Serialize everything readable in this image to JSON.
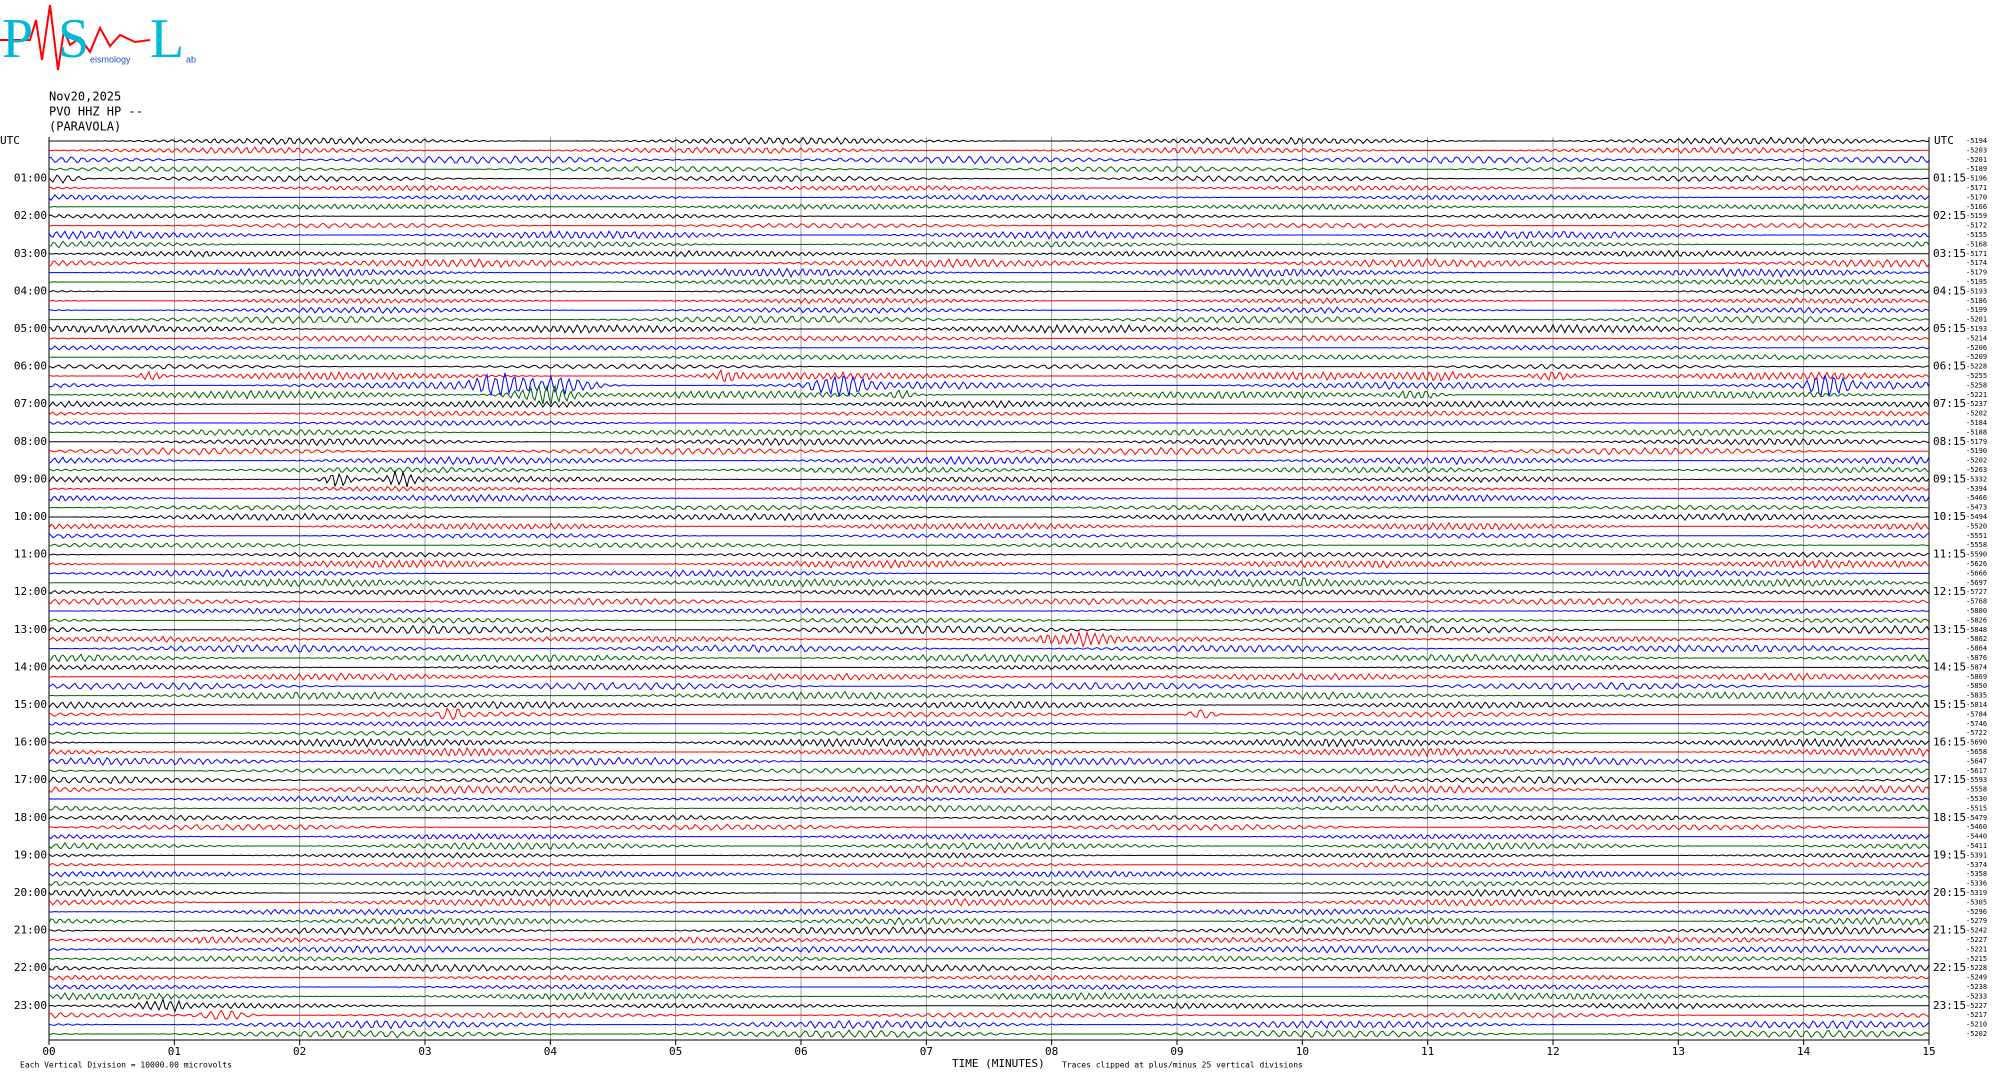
{
  "logo": {
    "letters": [
      "P",
      "S",
      "L"
    ],
    "small": [
      "eismology",
      "ab"
    ]
  },
  "header": {
    "date": "Nov20,2025",
    "station": "PVO HHZ HP --",
    "site": "(PARAVOLA)"
  },
  "chart_data": {
    "type": "helicorder",
    "xlabel": "TIME (MINUTES)",
    "note_left": "Each Vertical Division = 10000.00 microvolts",
    "note_right": "Traces clipped at plus/minus 25 vertical divisions",
    "utc_label": "UTC",
    "xlim": [
      0,
      15
    ],
    "xticks": [
      {
        "value": 0,
        "label": "00"
      },
      {
        "value": 1,
        "label": "01"
      },
      {
        "value": 2,
        "label": "02"
      },
      {
        "value": 3,
        "label": "03"
      },
      {
        "value": 4,
        "label": "04"
      },
      {
        "value": 5,
        "label": "05"
      },
      {
        "value": 6,
        "label": "06"
      },
      {
        "value": 7,
        "label": "07"
      },
      {
        "value": 8,
        "label": "08"
      },
      {
        "value": 9,
        "label": "09"
      },
      {
        "value": 10,
        "label": "10"
      },
      {
        "value": 11,
        "label": "11"
      },
      {
        "value": 12,
        "label": "12"
      },
      {
        "value": 13,
        "label": "13"
      },
      {
        "value": 14,
        "label": "14"
      },
      {
        "value": 15,
        "label": "15"
      }
    ],
    "grid": true,
    "colors": [
      "#000000",
      "#ff0000",
      "#0000ff",
      "#006400"
    ],
    "row_labels_left": [
      "01:00",
      "02:00",
      "03:00",
      "04:00",
      "05:00",
      "06:00",
      "07:00",
      "08:00",
      "09:00",
      "10:00",
      "11:00",
      "12:00",
      "13:00",
      "14:00",
      "15:00",
      "16:00",
      "17:00",
      "18:00",
      "19:00",
      "20:00",
      "21:00",
      "22:00",
      "23:00"
    ],
    "row_labels_right": [
      "01:15",
      "02:15",
      "03:15",
      "04:15",
      "05:15",
      "06:15",
      "07:15",
      "08:15",
      "09:15",
      "10:15",
      "11:15",
      "12:15",
      "13:15",
      "14:15",
      "15:15",
      "16:15",
      "17:15",
      "18:15",
      "19:15",
      "20:15",
      "21:15",
      "22:15",
      "23:15"
    ],
    "trace_offsets": [
      -5194,
      -5203,
      -5201,
      -5189,
      -5196,
      -5171,
      -5170,
      -5166,
      -5159,
      -5172,
      -5155,
      -5168,
      -5171,
      -5174,
      -5179,
      -5195,
      -5193,
      -5186,
      -5199,
      -5201,
      -5193,
      -5214,
      -5206,
      -5209,
      -5228,
      -5255,
      -5258,
      -5221,
      -5237,
      -5202,
      -5184,
      -5188,
      -5179,
      -5190,
      -5202,
      -5263,
      -5332,
      -5394,
      -5466,
      -5473,
      -5494,
      -5520,
      -5551,
      -5558,
      -5590,
      -5626,
      -5666,
      -5697,
      -5727,
      -5768,
      -5800,
      -5826,
      -5848,
      -5862,
      -5864,
      -5876,
      -5874,
      -5869,
      -5850,
      -5835,
      -5814,
      -5784,
      -5746,
      -5722,
      -5690,
      -5658,
      -5647,
      -5617,
      -5593,
      -5558,
      -5530,
      -5515,
      -5479,
      -5460,
      -5440,
      -5411,
      -5391,
      -5374,
      -5358,
      -5336,
      -5319,
      -5305,
      -5296,
      -5279,
      -5242,
      -5227,
      -5221,
      -5215,
      -5228,
      -5249,
      -5238,
      -5233,
      -5227,
      -5217,
      -5210,
      -5202
    ]
  }
}
